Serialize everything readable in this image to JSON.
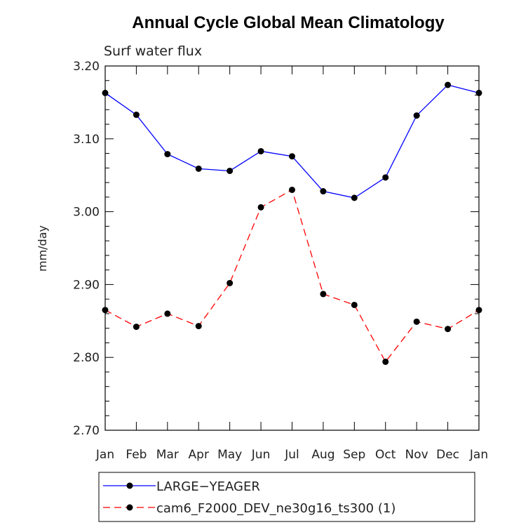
{
  "chart_data": {
    "type": "line",
    "title": "Annual Cycle Global Mean Climatology",
    "subtitle": "Surf water flux",
    "xlabel": "",
    "ylabel": "mm/day",
    "categories": [
      "Jan",
      "Feb",
      "Mar",
      "Apr",
      "May",
      "Jun",
      "Jul",
      "Aug",
      "Sep",
      "Oct",
      "Nov",
      "Dec",
      "Jan"
    ],
    "ylim": [
      2.7,
      3.2
    ],
    "yticks": [
      2.7,
      2.8,
      2.9,
      3.0,
      3.1,
      3.2
    ],
    "ytick_labels": [
      "2.70",
      "2.80",
      "2.90",
      "3.00",
      "3.10",
      "3.20"
    ],
    "grid": false,
    "legend_position": "bottom",
    "series": [
      {
        "name": "LARGE−YEAGER",
        "color": "#0000ff",
        "line_style": "solid",
        "marker": "filled-circle",
        "values": [
          3.163,
          3.133,
          3.079,
          3.059,
          3.056,
          3.083,
          3.076,
          3.028,
          3.019,
          3.047,
          3.132,
          3.174,
          3.163
        ]
      },
      {
        "name": "cam6_F2000_DEV_ne30g16_ts300 (1)",
        "color": "#ff0000",
        "line_style": "dashed",
        "marker": "filled-circle",
        "values": [
          2.865,
          2.842,
          2.86,
          2.843,
          2.902,
          3.006,
          3.03,
          2.887,
          2.872,
          2.794,
          2.849,
          2.839,
          2.865
        ]
      }
    ]
  }
}
